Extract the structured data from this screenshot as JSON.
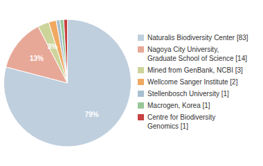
{
  "chart_data": {
    "type": "pie",
    "categories": [
      "Naturalis Biodiversity Center [83]",
      "Nagoya City University,\nGraduate School of Science [14]",
      "Mined from GenBank, NCBI [3]",
      "Wellcome Sanger Institute [2]",
      "Stellenbosch University [1]",
      "Macrogen, Korea [1]",
      "Centre for Biodiversity\nGenomics [1]"
    ],
    "values": [
      83,
      14,
      3,
      2,
      1,
      1,
      1
    ],
    "value_labels": [
      "79%",
      "13%",
      "3%",
      null,
      null,
      null,
      null
    ],
    "colors": [
      "#bfcfde",
      "#e8a898",
      "#cdd49a",
      "#f0a860",
      "#a8bfd0",
      "#98c898",
      "#c84040"
    ],
    "data_labels": true,
    "legend": "right"
  }
}
